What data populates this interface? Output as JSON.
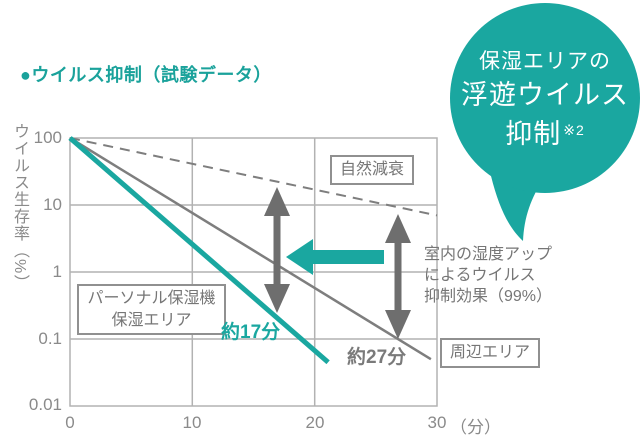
{
  "header": {
    "title": "●ウイルス抑制（試験データ）"
  },
  "badge": {
    "line1": "保湿エリアの",
    "line2": "浮遊ウイルス",
    "line3": "抑制",
    "sup": "※2",
    "color": "#1aa7a0"
  },
  "colors": {
    "teal": "#1aa7a0",
    "line_gray": "#7e7e7e",
    "arrow_gray": "#6e6e6e",
    "grid_gray": "#b2b2b2",
    "text_gray": "#767676",
    "axis_text": "#8a8a8a"
  },
  "chart_data": {
    "type": "line",
    "title": "ウイルス抑制（試験データ）",
    "ylabel": "ウイルス生存率（%）",
    "x_unit": "（分）",
    "y_scale": "log",
    "xlim": [
      0,
      30
    ],
    "ylim": [
      0.01,
      100
    ],
    "x_ticks": [
      "0",
      "10",
      "20",
      "30"
    ],
    "y_ticks": [
      "100",
      "10",
      "1",
      "0.1",
      "0.01"
    ],
    "grid": true,
    "legend_position": "inline-boxed-labels",
    "series": [
      {
        "key": "natural-decay",
        "name": "自然減衰",
        "style": "dashed",
        "color": "#7e7e7e",
        "width": 2,
        "dash": "10 7",
        "points": [
          [
            0,
            100
          ],
          [
            30,
            7
          ]
        ]
      },
      {
        "key": "surrounding-area",
        "name": "周辺エリア",
        "style": "solid",
        "color": "#7e7e7e",
        "width": 2.5,
        "points": [
          [
            0,
            100
          ],
          [
            29.5,
            0.05
          ]
        ],
        "time_label": "約27分"
      },
      {
        "key": "humidified-area",
        "name": "パーソナル保湿機保湿エリア",
        "name_line1": "パーソナル保湿機",
        "name_line2": "保湿エリア",
        "style": "solid",
        "color": "#1aa7a0",
        "width": 5,
        "points": [
          [
            0,
            100
          ],
          [
            21.1,
            0.045
          ]
        ],
        "time_label": "約17分"
      }
    ],
    "annotation_note": {
      "line1": "室内の湿度アップ",
      "line2": "によるウイルス",
      "line3": "抑制効果（99%）"
    },
    "annotation_arrows": [
      {
        "key": "suppression-gap-humidified",
        "type": "vertical-double",
        "x_min": 17,
        "from_series": "natural-decay",
        "to_series": "humidified-area"
      },
      {
        "key": "suppression-gap-surrounding",
        "type": "vertical-double",
        "x_min": 27,
        "from_series": "natural-decay",
        "to_series": "surrounding-area"
      },
      {
        "key": "time-shift",
        "type": "horizontal-left",
        "color": "#1aa7a0"
      }
    ]
  }
}
